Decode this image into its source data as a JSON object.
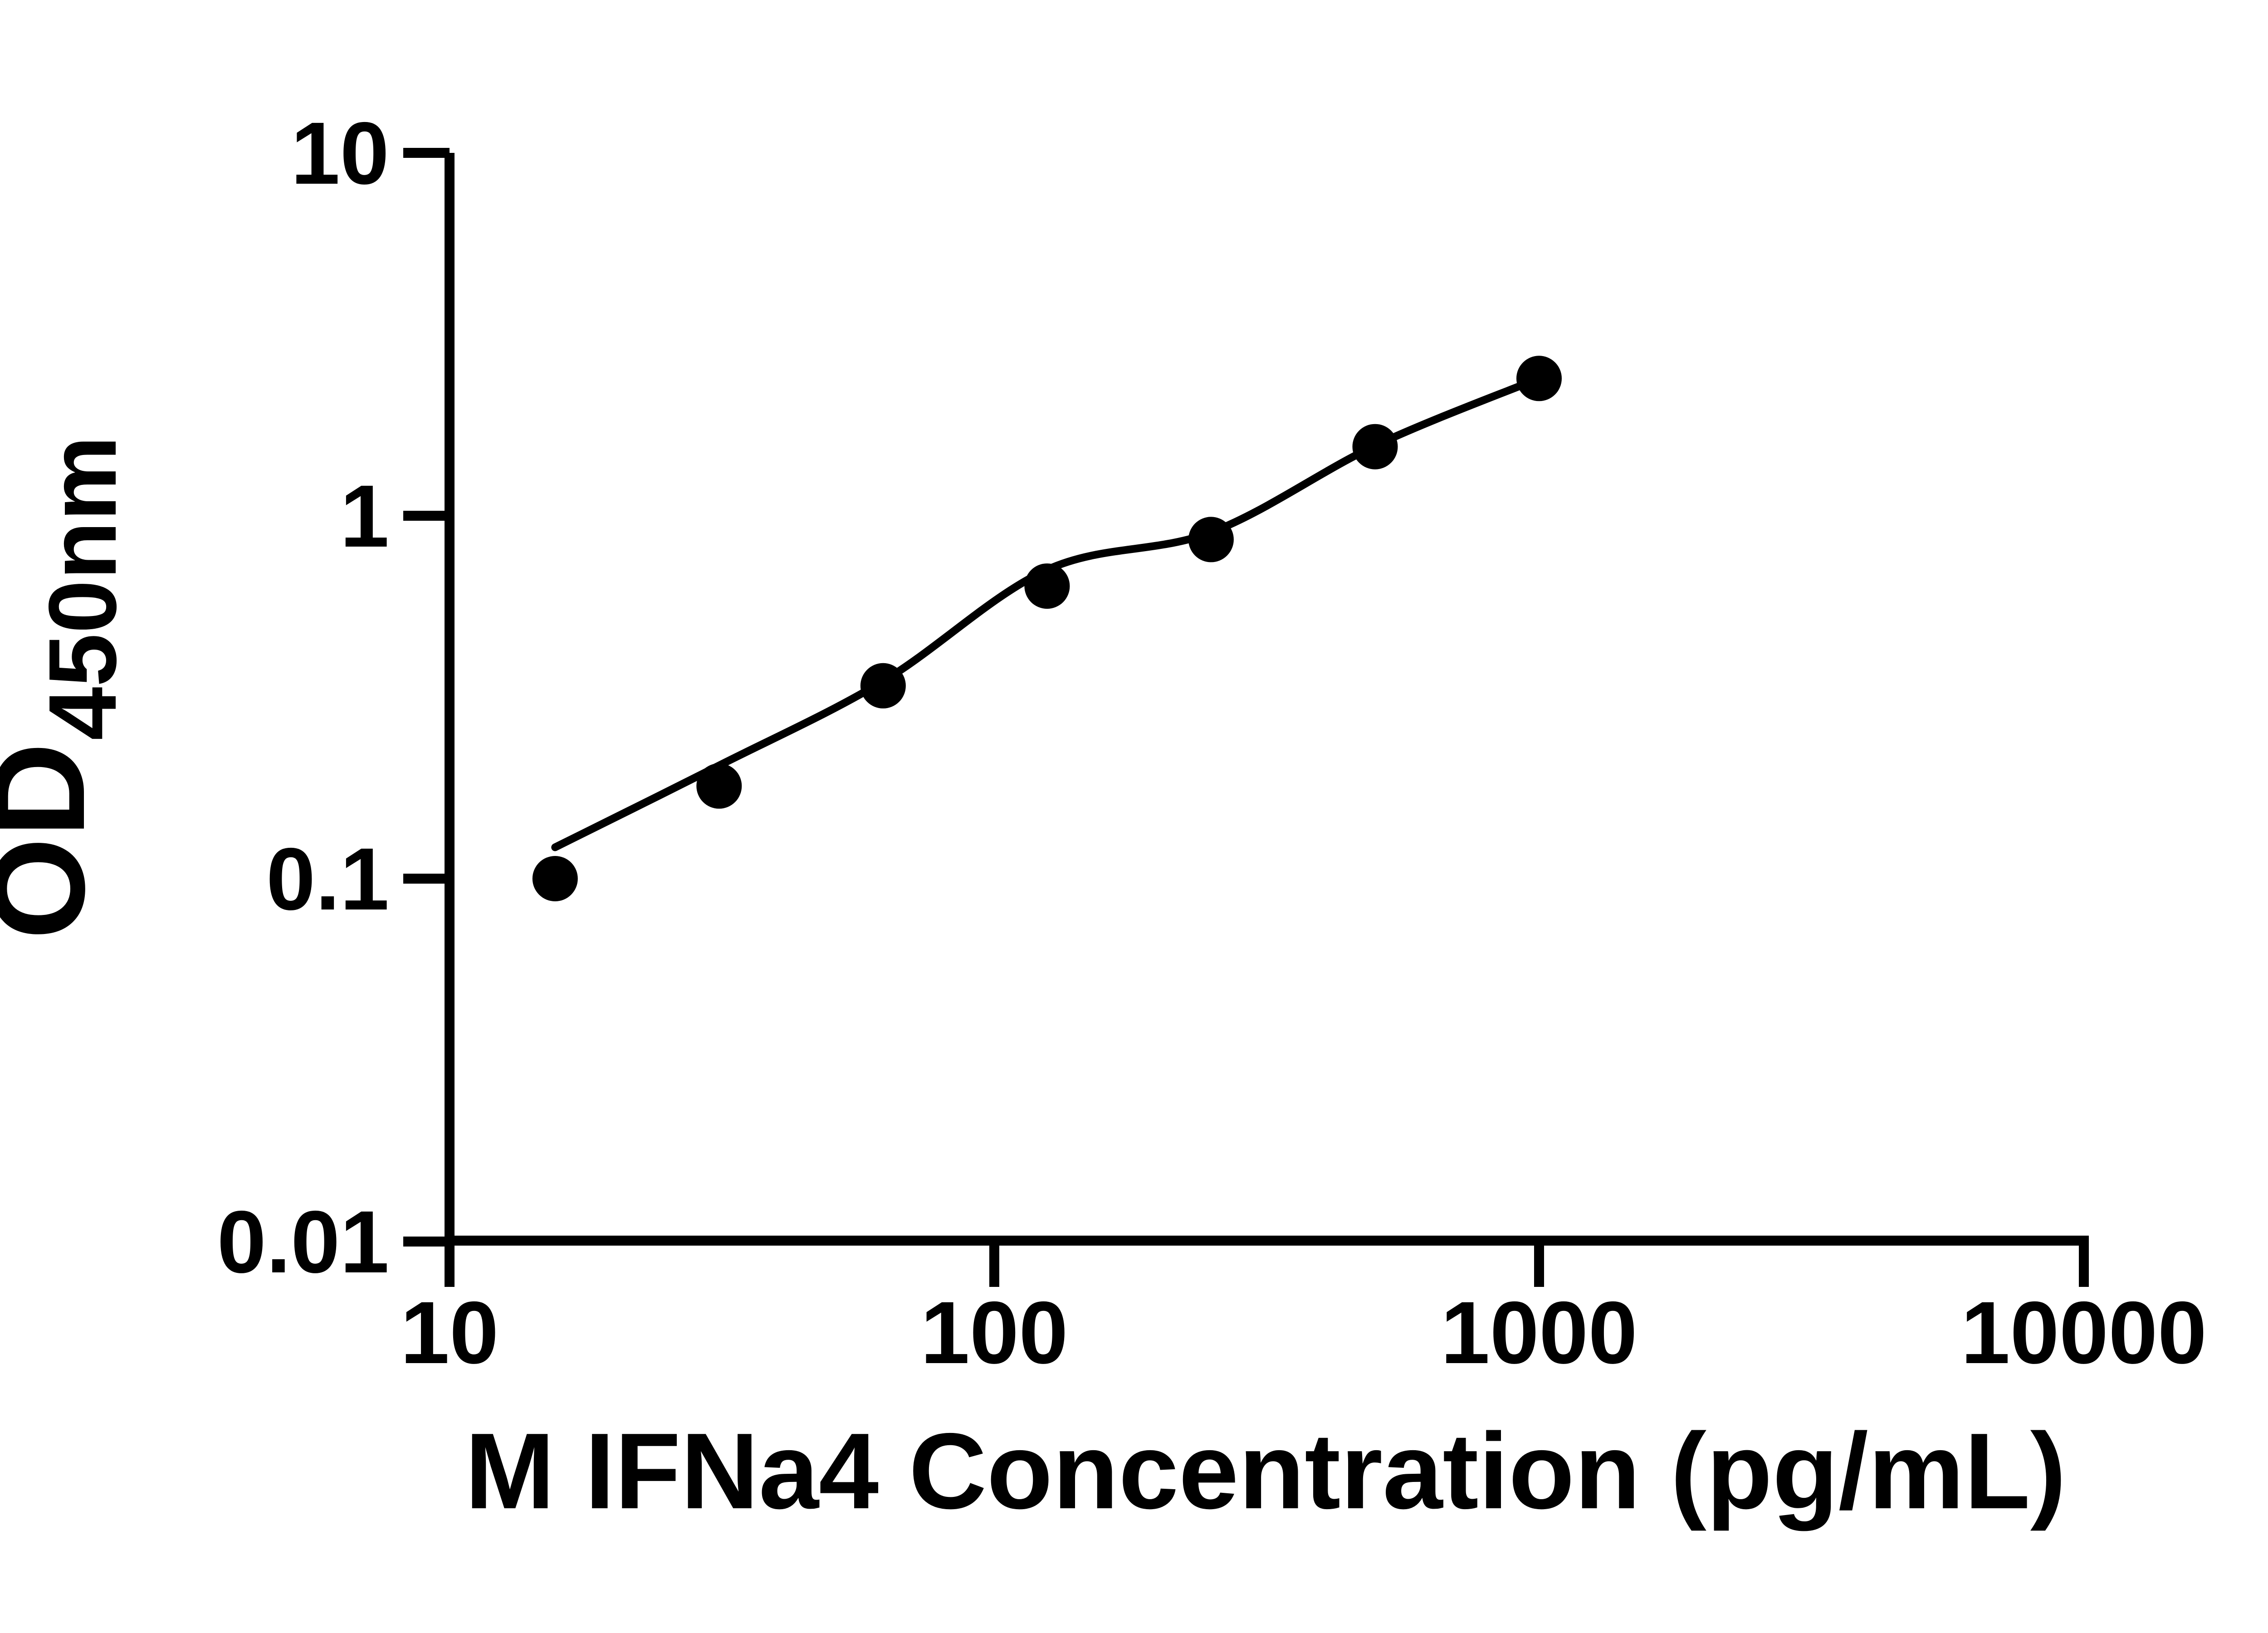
{
  "figure": {
    "background": "#ffffff",
    "foreground": "#000000"
  },
  "chart_data": {
    "type": "scatter",
    "title": "",
    "xlabel": "M IFNa4 Concentration (pg/mL)",
    "ylabel_main": "OD",
    "ylabel_sub": "450nm",
    "x_scale": "log10",
    "y_scale": "log10",
    "xlim": [
      10,
      10000
    ],
    "ylim": [
      0.01,
      10
    ],
    "x_ticks": [
      10,
      100,
      1000,
      10000
    ],
    "x_tick_labels": [
      "10",
      "100",
      "1000",
      "10000"
    ],
    "y_ticks": [
      0.01,
      0.1,
      1,
      10
    ],
    "y_tick_labels": [
      "0.01",
      "0.1",
      "1",
      "10"
    ],
    "grid": false,
    "legend": "none",
    "marker_color": "#000000",
    "line_color": "#000000",
    "series": [
      {
        "name": "standard-points",
        "x": [
          15.625,
          31.25,
          62.5,
          125,
          250,
          500,
          1000
        ],
        "y": [
          0.1,
          0.18,
          0.34,
          0.64,
          0.86,
          1.55,
          2.39
        ]
      }
    ],
    "fit_curve": {
      "name": "4pl-fit-line",
      "x": [
        15.625,
        31.25,
        62.5,
        125,
        250,
        500,
        1000
      ],
      "y": [
        0.122,
        0.205,
        0.35,
        0.71,
        0.9,
        1.56,
        2.39
      ]
    }
  }
}
